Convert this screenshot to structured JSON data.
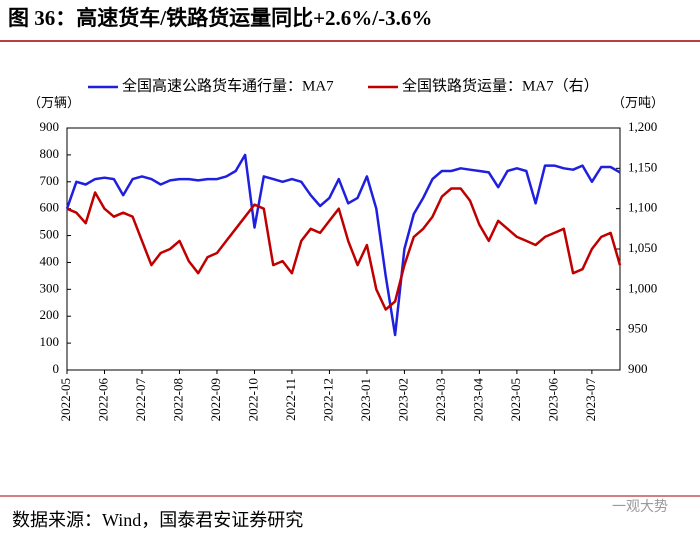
{
  "chart_data": {
    "type": "line",
    "title": "图 36：高速货车/铁路货运量同比+2.6%/-3.6%",
    "y_unit": "（万辆）",
    "y2_unit": "（万吨）",
    "source": "数据来源：Wind，国泰君安证券研究",
    "watermark": "一观大势",
    "categories": [
      "2022-05",
      null,
      null,
      null,
      "2022-06",
      null,
      null,
      null,
      "2022-07",
      null,
      null,
      null,
      "2022-08",
      null,
      null,
      null,
      "2022-09",
      null,
      null,
      null,
      "2022-10",
      null,
      null,
      null,
      "2022-11",
      null,
      null,
      null,
      "2022-12",
      null,
      null,
      null,
      "2023-01",
      null,
      null,
      null,
      "2023-02",
      null,
      null,
      null,
      "2023-03",
      null,
      null,
      null,
      "2023-04",
      null,
      null,
      null,
      "2023-05",
      null,
      null,
      null,
      "2023-06",
      null,
      null,
      null,
      "2023-07",
      null,
      null,
      null
    ],
    "ylim": [
      0,
      900
    ],
    "yticks": [
      0,
      100,
      200,
      300,
      400,
      500,
      600,
      700,
      800,
      900
    ],
    "y2lim": [
      900,
      1200
    ],
    "y2ticks": [
      900,
      950,
      {
        "value": 1000,
        "label": "1,000"
      },
      {
        "value": 1050,
        "label": "1,050"
      },
      {
        "value": 1100,
        "label": "1,100"
      },
      {
        "value": 1150,
        "label": "1,150"
      },
      {
        "value": 1200,
        "label": "1,200"
      }
    ],
    "series": [
      {
        "name": "全国高速公路货车通行量：MA7",
        "color": "#1f1fe0",
        "values": [
          600,
          700,
          690,
          710,
          715,
          710,
          650,
          710,
          720,
          710,
          690,
          705,
          710,
          710,
          705,
          710,
          710,
          720,
          740,
          800,
          530,
          720,
          710,
          700,
          710,
          700,
          650,
          610,
          640,
          710,
          620,
          640,
          720,
          600,
          350,
          130,
          450,
          580,
          640,
          710,
          740,
          740,
          750,
          745,
          740,
          735,
          680,
          740,
          750,
          740,
          620,
          760,
          760,
          750,
          745,
          760,
          700,
          755,
          755,
          735
        ]
      },
      {
        "name": "全国铁路货运量：MA7（右）",
        "color": "#c00000",
        "axis": "y2",
        "values": [
          1100,
          1095,
          1082,
          1120,
          1100,
          1090,
          1095,
          1090,
          1060,
          1030,
          1045,
          1050,
          1060,
          1035,
          1020,
          1040,
          1045,
          1060,
          1075,
          1090,
          1105,
          1100,
          1030,
          1035,
          1020,
          1060,
          1075,
          1070,
          1085,
          1100,
          1060,
          1030,
          1055,
          1000,
          975,
          985,
          1030,
          1065,
          1075,
          1090,
          1115,
          1125,
          1125,
          1110,
          1080,
          1060,
          1085,
          1075,
          1065,
          1060,
          1055,
          1065,
          1070,
          1075,
          1020,
          1025,
          1050,
          1065,
          1070,
          1030
        ]
      }
    ]
  }
}
